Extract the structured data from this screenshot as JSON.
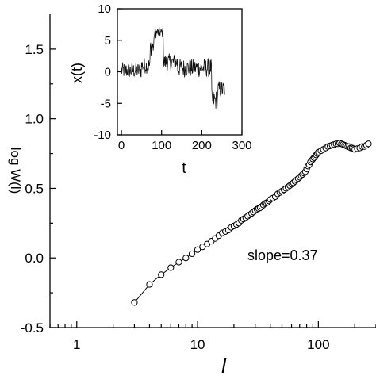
{
  "chart_data": [
    {
      "type": "scatter",
      "xscale": "log",
      "xlim": [
        0.6,
        300
      ],
      "ylim": [
        -0.5,
        1.75
      ],
      "xlabel": "l",
      "ylabel": "log W(l)",
      "xticks": [
        1,
        10,
        100
      ],
      "yticks": [
        -0.5,
        0.0,
        0.5,
        1.0,
        1.5
      ],
      "xtick_labels": [
        "1",
        "10",
        "100"
      ],
      "ytick_labels": [
        "-0.5",
        "0.0",
        "0.5",
        "1.0",
        "1.5"
      ],
      "annotation": "slope=0.37",
      "series": [
        {
          "marker": "open-circle",
          "line": true,
          "x": [
            3,
            4,
            5,
            6,
            7,
            8,
            9,
            10,
            11,
            12,
            13,
            14,
            15,
            16,
            17,
            18,
            19,
            20,
            21,
            22,
            23,
            24,
            25,
            26,
            27,
            28,
            29,
            30,
            31,
            32,
            33,
            34,
            35,
            36,
            37,
            38,
            39,
            40,
            42,
            44,
            46,
            48,
            50,
            52,
            54,
            56,
            58,
            60,
            62,
            64,
            66,
            68,
            70,
            72,
            74,
            76,
            78,
            80,
            82,
            84,
            86,
            88,
            90,
            92,
            94,
            96,
            98,
            100,
            105,
            110,
            115,
            120,
            125,
            130,
            135,
            140,
            145,
            150,
            155,
            160,
            165,
            170,
            175,
            180,
            185,
            190,
            195,
            200,
            210,
            220,
            230,
            240,
            250,
            260
          ],
          "y": [
            -0.32,
            -0.19,
            -0.12,
            -0.07,
            -0.03,
            0.0,
            0.03,
            0.06,
            0.08,
            0.1,
            0.12,
            0.14,
            0.16,
            0.18,
            0.19,
            0.2,
            0.22,
            0.23,
            0.24,
            0.25,
            0.27,
            0.28,
            0.29,
            0.3,
            0.31,
            0.32,
            0.33,
            0.34,
            0.35,
            0.355,
            0.36,
            0.37,
            0.38,
            0.39,
            0.395,
            0.4,
            0.41,
            0.42,
            0.43,
            0.44,
            0.46,
            0.47,
            0.48,
            0.49,
            0.5,
            0.51,
            0.52,
            0.53,
            0.54,
            0.55,
            0.56,
            0.57,
            0.58,
            0.59,
            0.6,
            0.61,
            0.62,
            0.64,
            0.66,
            0.67,
            0.69,
            0.7,
            0.71,
            0.72,
            0.73,
            0.74,
            0.75,
            0.76,
            0.77,
            0.78,
            0.79,
            0.8,
            0.805,
            0.81,
            0.815,
            0.82,
            0.82,
            0.825,
            0.82,
            0.815,
            0.81,
            0.805,
            0.8,
            0.8,
            0.79,
            0.79,
            0.785,
            0.78,
            0.785,
            0.79,
            0.8,
            0.8,
            0.81,
            0.82
          ]
        }
      ]
    },
    {
      "type": "line",
      "inset": true,
      "xlim": [
        -10,
        300
      ],
      "ylim": [
        -10,
        10
      ],
      "xlabel": "t",
      "ylabel": "x(t)",
      "xticks": [
        0,
        100,
        200,
        300
      ],
      "yticks": [
        -10,
        -5,
        0,
        5,
        10
      ],
      "xtick_labels": [
        "0",
        "100",
        "200",
        "300"
      ],
      "ytick_labels": [
        "-10",
        "-5",
        "0",
        "5",
        "10"
      ],
      "segments": [
        {
          "t0": 0,
          "t1": 50,
          "mean": 0.2,
          "amp": 1.3
        },
        {
          "t0": 50,
          "t1": 72,
          "mean": 1.0,
          "amp": 1.3
        },
        {
          "t0": 72,
          "t1": 82,
          "mean": 4.0,
          "amp": 1.5
        },
        {
          "t0": 82,
          "t1": 105,
          "mean": 6.2,
          "amp": 0.9
        },
        {
          "t0": 105,
          "t1": 140,
          "mean": 1.5,
          "amp": 1.4
        },
        {
          "t0": 140,
          "t1": 225,
          "mean": 0.6,
          "amp": 1.5
        },
        {
          "t0": 225,
          "t1": 240,
          "mean": -4.5,
          "amp": 1.6
        },
        {
          "t0": 240,
          "t1": 258,
          "mean": -2.8,
          "amp": 1.4
        }
      ]
    }
  ]
}
